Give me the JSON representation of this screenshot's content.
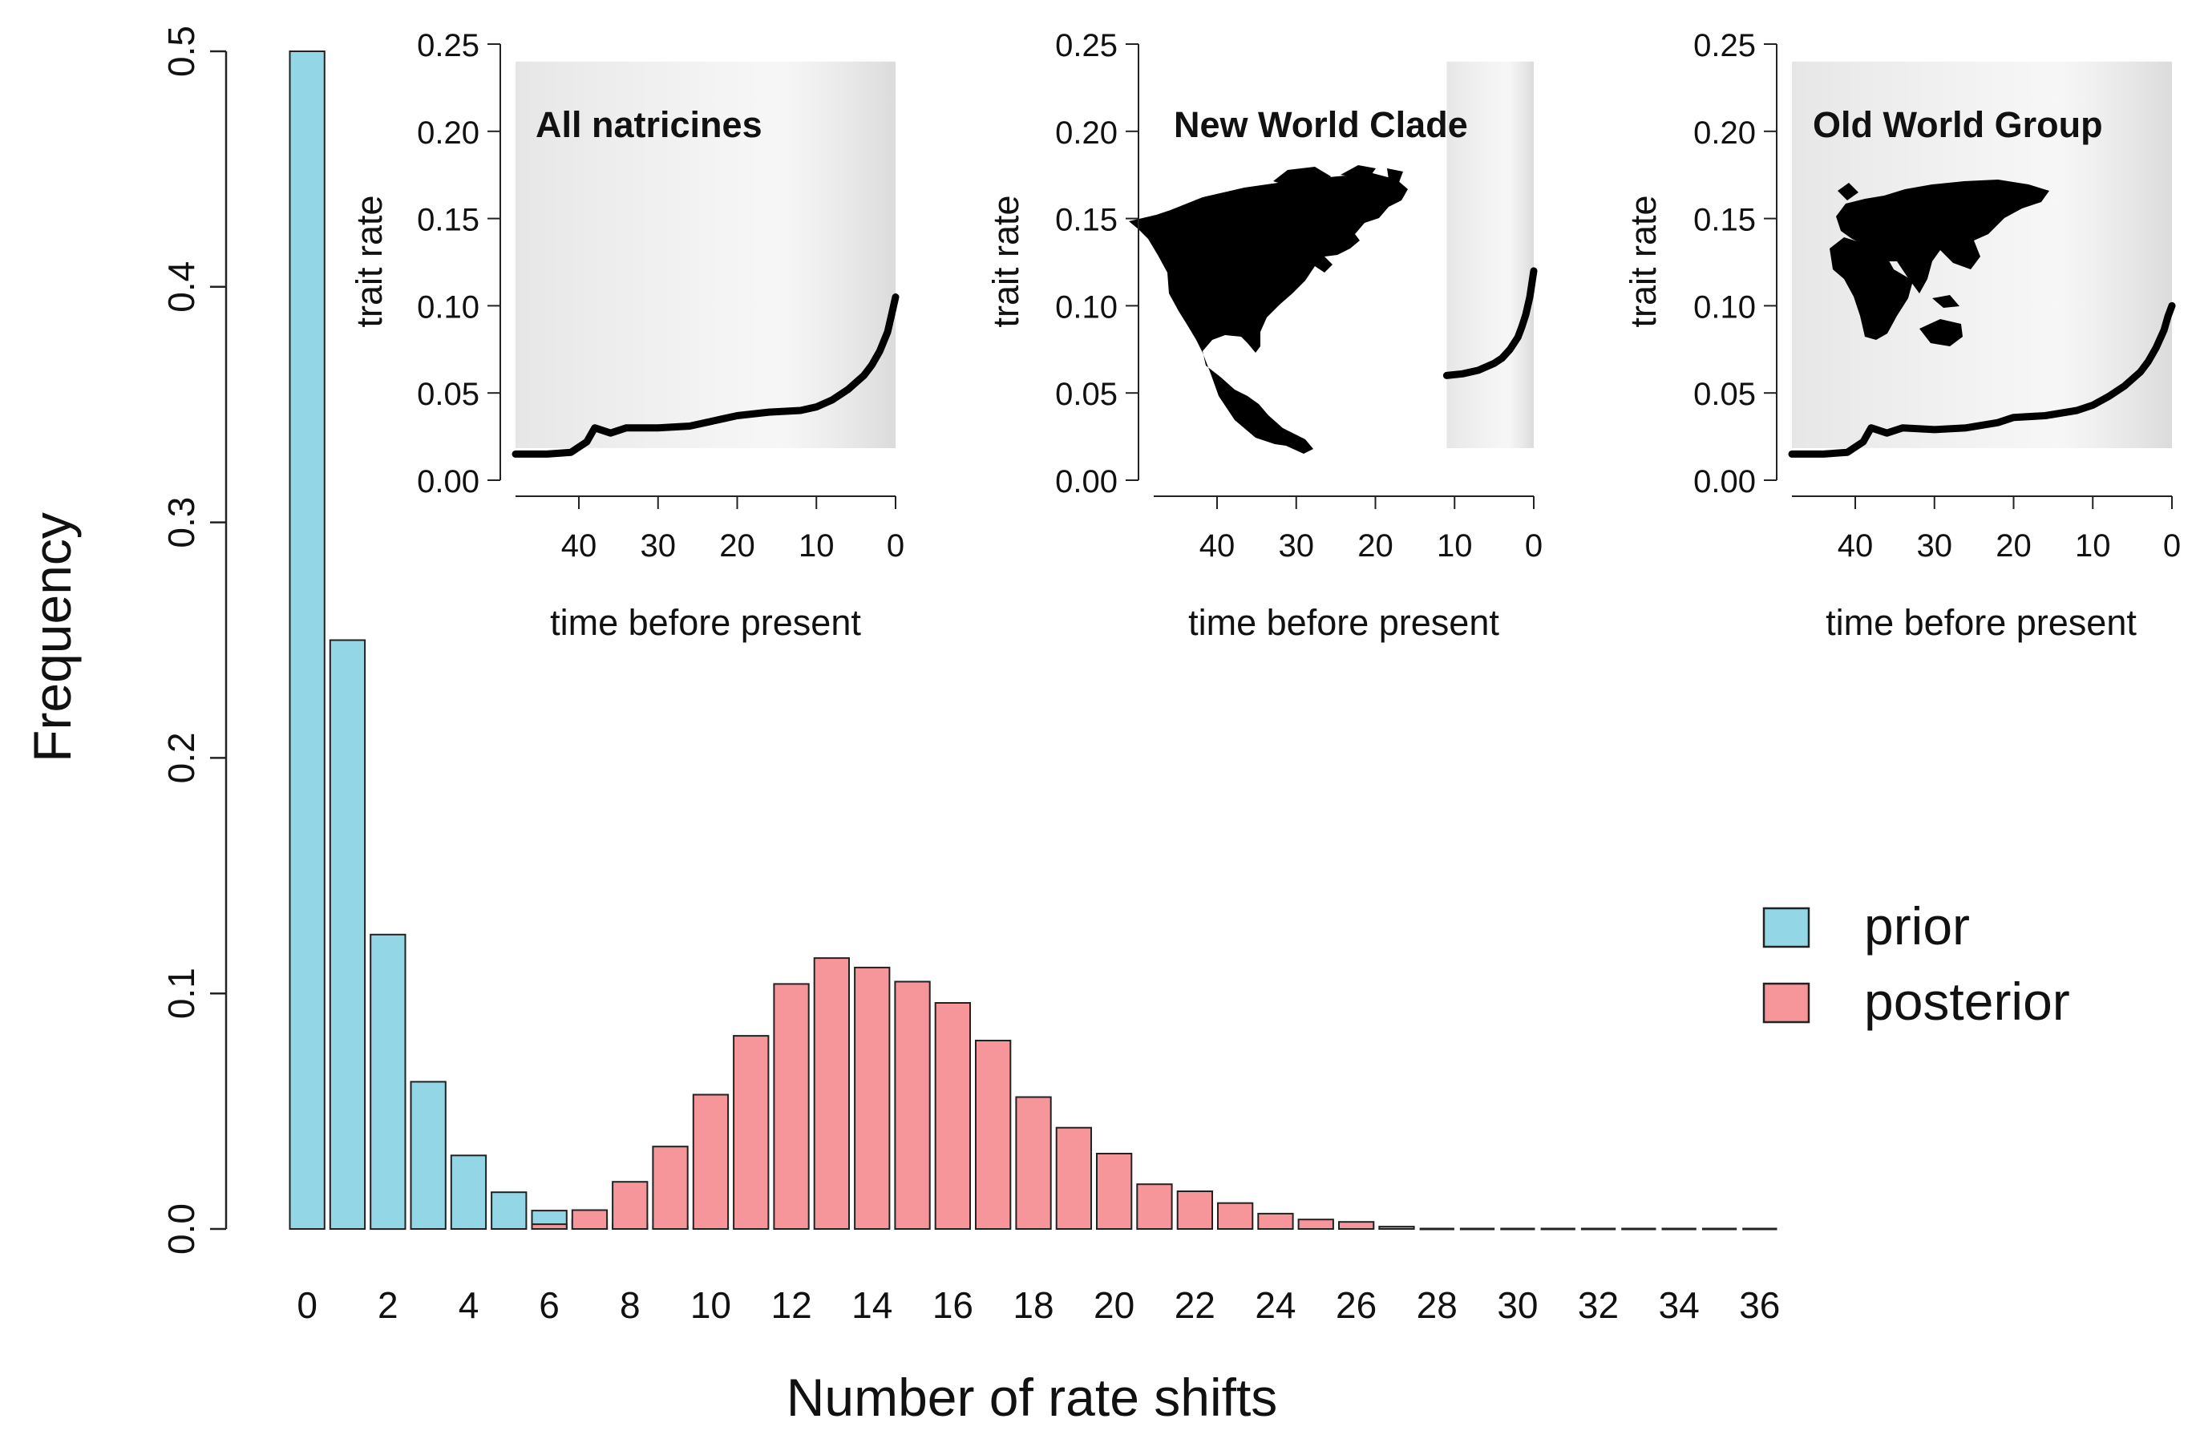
{
  "chart_data": [
    {
      "type": "bar",
      "title": "",
      "xlabel": "Number of rate shifts",
      "ylabel": "Frequency",
      "xticks": [
        0,
        2,
        4,
        6,
        8,
        10,
        12,
        14,
        16,
        18,
        20,
        22,
        24,
        26,
        28,
        30,
        32,
        34,
        36
      ],
      "yticks": [
        "0.0",
        "0.1",
        "0.2",
        "0.3",
        "0.4",
        "0.5"
      ],
      "ylim": [
        0,
        0.5
      ],
      "legend_position": "right",
      "categories": [
        0,
        1,
        2,
        3,
        4,
        5,
        6,
        7,
        8,
        9,
        10,
        11,
        12,
        13,
        14,
        15,
        16,
        17,
        18,
        19,
        20,
        21,
        22,
        23,
        24,
        25,
        26,
        27,
        28,
        29,
        30,
        31,
        32,
        33,
        34,
        35,
        36
      ],
      "series": [
        {
          "name": "prior",
          "color": "#93d6e6",
          "values": [
            0.5,
            0.25,
            0.125,
            0.0625,
            0.0312,
            0.0156,
            0.0078,
            0.0039,
            0.002,
            0.001,
            0.0005,
            0,
            0,
            0,
            0,
            0,
            0,
            0,
            0,
            0,
            0,
            0,
            0,
            0,
            0,
            0,
            0,
            0,
            0,
            0,
            0,
            0,
            0,
            0,
            0,
            0,
            0
          ]
        },
        {
          "name": "posterior",
          "color": "#f7969a",
          "values": [
            0,
            0,
            0,
            0,
            0,
            0,
            0.002,
            0.008,
            0.02,
            0.035,
            0.057,
            0.082,
            0.104,
            0.115,
            0.111,
            0.105,
            0.096,
            0.08,
            0.056,
            0.043,
            0.032,
            0.019,
            0.016,
            0.011,
            0.0065,
            0.004,
            0.003,
            0.001,
            0,
            0,
            0,
            0,
            0,
            0,
            0,
            0,
            0
          ]
        }
      ]
    },
    {
      "type": "line",
      "title": "All natricines",
      "map": "",
      "xlabel": "time before present",
      "ylabel": "trait rate",
      "xlim": [
        48,
        0
      ],
      "ylim": [
        0,
        0.25
      ],
      "xticks": [
        40,
        30,
        20,
        10,
        0
      ],
      "yticks": [
        "0.00",
        "0.05",
        "0.10",
        "0.15",
        "0.20",
        "0.25"
      ],
      "x": [
        48,
        44,
        41,
        39,
        38,
        36,
        34,
        30,
        26,
        22,
        20,
        16,
        12,
        10,
        8,
        6,
        4,
        3,
        2,
        1,
        0.5,
        0
      ],
      "y": [
        0.015,
        0.015,
        0.016,
        0.022,
        0.03,
        0.027,
        0.03,
        0.03,
        0.031,
        0.035,
        0.037,
        0.039,
        0.04,
        0.042,
        0.046,
        0.052,
        0.06,
        0.066,
        0.074,
        0.085,
        0.095,
        0.105
      ]
    },
    {
      "type": "line",
      "title": "New World Clade",
      "map": "north-america-map-icon",
      "xlabel": "time before present",
      "ylabel": "trait rate",
      "xlim": [
        48,
        0
      ],
      "ylim": [
        0,
        0.25
      ],
      "xticks": [
        40,
        30,
        20,
        10,
        0
      ],
      "yticks": [
        "0.00",
        "0.05",
        "0.10",
        "0.15",
        "0.20",
        "0.25"
      ],
      "x": [
        11,
        9,
        7,
        5,
        4,
        3,
        2,
        1.5,
        1,
        0.5,
        0
      ],
      "y": [
        0.06,
        0.061,
        0.063,
        0.067,
        0.07,
        0.075,
        0.082,
        0.088,
        0.095,
        0.105,
        0.12
      ]
    },
    {
      "type": "line",
      "title": "Old World Group",
      "map": "old-world-map-icon",
      "xlabel": "time before present",
      "ylabel": "trait rate",
      "xlim": [
        48,
        0
      ],
      "ylim": [
        0,
        0.25
      ],
      "xticks": [
        40,
        30,
        20,
        10,
        0
      ],
      "yticks": [
        "0.00",
        "0.05",
        "0.10",
        "0.15",
        "0.20",
        "0.25"
      ],
      "x": [
        48,
        44,
        41,
        39,
        38,
        36,
        34,
        30,
        26,
        22,
        20,
        16,
        12,
        10,
        8,
        6,
        4,
        3,
        2,
        1,
        0.5,
        0
      ],
      "y": [
        0.015,
        0.015,
        0.016,
        0.022,
        0.03,
        0.027,
        0.03,
        0.029,
        0.03,
        0.033,
        0.036,
        0.037,
        0.04,
        0.043,
        0.048,
        0.054,
        0.062,
        0.068,
        0.076,
        0.086,
        0.094,
        0.1
      ]
    }
  ]
}
